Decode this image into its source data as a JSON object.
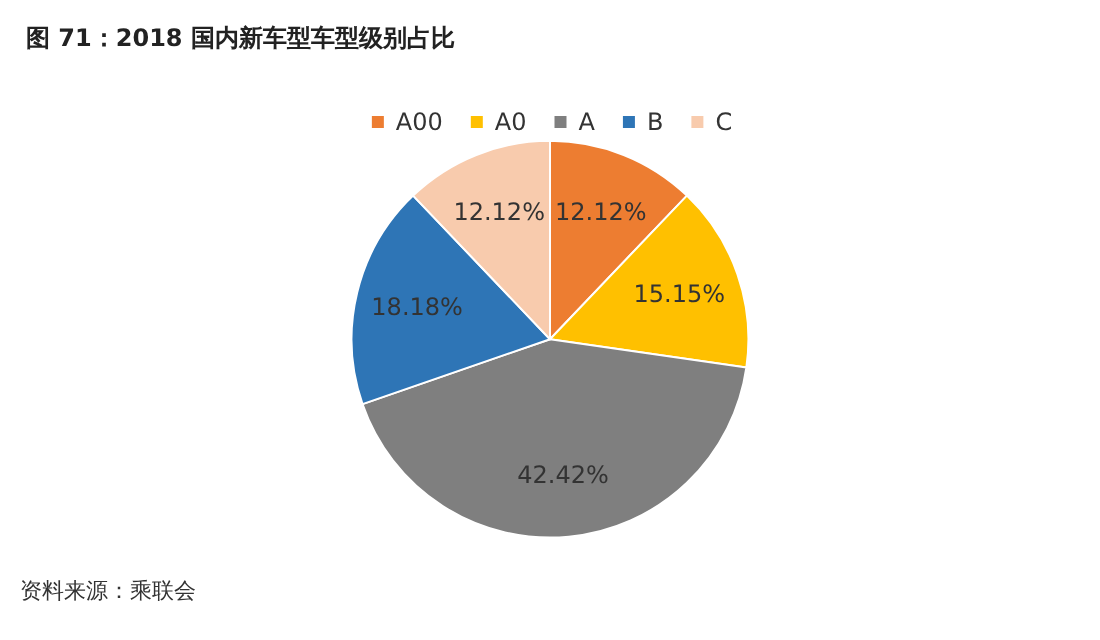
{
  "chart_data": {
    "type": "pie",
    "title": "图 71：2018 国内新车型车型级别占比",
    "categories": [
      "A00",
      "A0",
      "A",
      "B",
      "C"
    ],
    "values": [
      12.12,
      15.15,
      42.42,
      18.18,
      12.12
    ],
    "colors": [
      "#ed7d31",
      "#ffc000",
      "#7f7f7f",
      "#2e75b6",
      "#f8cbad"
    ],
    "value_labels": [
      "12.12%",
      "15.15%",
      "42.42%",
      "18.18%",
      "12.12%"
    ],
    "legend": "top",
    "annotations": [
      "资料来源：乘联会"
    ]
  }
}
